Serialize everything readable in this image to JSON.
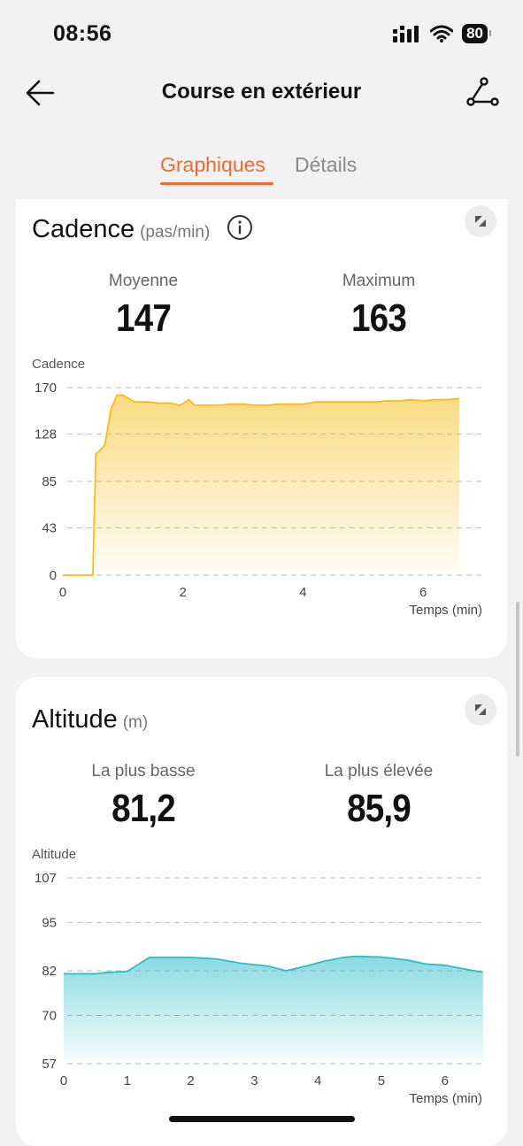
{
  "status_bar": {
    "time": "08:56",
    "battery": "80"
  },
  "nav": {
    "title": "Course en extérieur"
  },
  "tabs": [
    {
      "label": "Graphiques",
      "active": true
    },
    {
      "label": "Détails",
      "active": false
    }
  ],
  "colors": {
    "accent": "#ef6a2e",
    "cadence_line": "#f5bc1c",
    "altitude_line": "#2bbcc8"
  },
  "cadence_card": {
    "title": "Cadence",
    "unit": "(pas/min)",
    "stat1_label": "Moyenne",
    "stat1_value": "147",
    "stat2_label": "Maximum",
    "stat2_value": "163"
  },
  "altitude_card": {
    "title": "Altitude",
    "unit": "(m)",
    "stat1_label": "La plus basse",
    "stat1_value": "81,2",
    "stat2_label": "La plus élevée",
    "stat2_value": "85,9"
  },
  "chart_data": [
    {
      "type": "area",
      "ylabel": "Cadence",
      "xlabel": "Temps (min)",
      "yticks": [
        0,
        43,
        85,
        128,
        170
      ],
      "xticks": [
        0,
        2,
        4,
        6
      ],
      "ylim": [
        0,
        170
      ],
      "xlim": [
        0,
        7
      ],
      "grid": true,
      "x": [
        0,
        0.5,
        0.55,
        0.6,
        0.7,
        0.8,
        0.9,
        1.0,
        1.2,
        1.4,
        1.6,
        1.8,
        1.95,
        2.1,
        2.2,
        2.4,
        2.6,
        2.8,
        3.0,
        3.2,
        3.4,
        3.6,
        3.8,
        4.0,
        4.2,
        4.4,
        4.6,
        4.8,
        5.0,
        5.2,
        5.4,
        5.6,
        5.8,
        6.0,
        6.2,
        6.4,
        6.6
      ],
      "y": [
        0,
        0,
        110,
        112,
        118,
        150,
        163,
        163,
        157,
        157,
        156,
        156,
        154,
        159,
        154,
        154,
        154,
        155,
        155,
        154,
        154,
        155,
        155,
        155,
        157,
        157,
        157,
        157,
        157,
        157,
        158,
        158,
        159,
        158,
        159,
        159,
        160
      ]
    },
    {
      "type": "area",
      "ylabel": "Altitude",
      "xlabel": "Temps (min)",
      "yticks": [
        57,
        70,
        82,
        95,
        107
      ],
      "xticks": [
        0,
        1,
        2,
        3,
        4,
        5,
        6
      ],
      "ylim": [
        57,
        107
      ],
      "xlim": [
        0,
        6.7
      ],
      "grid": true,
      "x": [
        0,
        0.5,
        0.7,
        1.0,
        1.2,
        1.35,
        1.5,
        2.0,
        2.4,
        2.8,
        3.2,
        3.5,
        3.8,
        4.1,
        4.4,
        4.6,
        5.0,
        5.4,
        5.7,
        6.0,
        6.3,
        6.6
      ],
      "y": [
        81.2,
        81.2,
        81.6,
        81.8,
        84.0,
        85.6,
        85.6,
        85.6,
        85.2,
        84.0,
        83.3,
        82.0,
        83.2,
        84.6,
        85.6,
        85.9,
        85.7,
        84.9,
        83.8,
        83.5,
        82.5,
        81.6
      ]
    }
  ]
}
